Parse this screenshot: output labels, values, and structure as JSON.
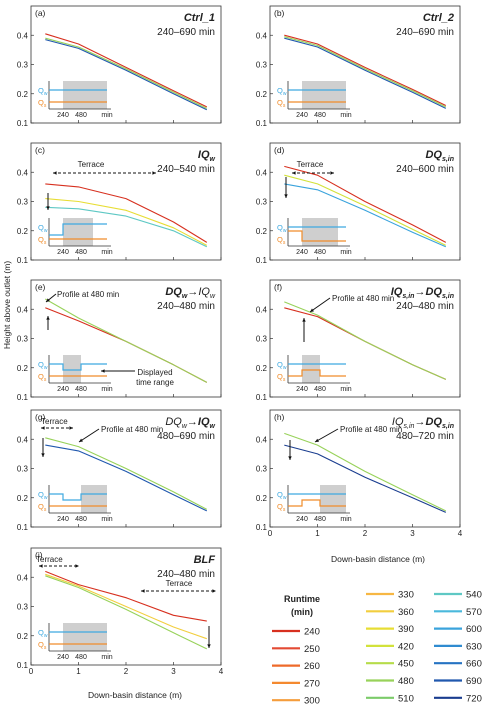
{
  "chart_data": {
    "type": "line",
    "ylabel": "Height above outlet (m)",
    "xlabel": "Down-basin distance (m)",
    "xlim": [
      0,
      4
    ],
    "ylim": [
      0.1,
      0.5
    ],
    "x_ticks": [
      "0",
      "1",
      "2",
      "3",
      "4"
    ],
    "y_ticks": [
      "0.1",
      "0.2",
      "0.3",
      "0.4"
    ],
    "grid": false,
    "legend": {
      "title": "Runtime (min)",
      "placement": "bottom-right",
      "entries": [
        {
          "label": "240",
          "color": "#d7301f"
        },
        {
          "label": "250",
          "color": "#e34a33"
        },
        {
          "label": "260",
          "color": "#ee6a2a"
        },
        {
          "label": "270",
          "color": "#f4892f"
        },
        {
          "label": "300",
          "color": "#f59d3c"
        },
        {
          "label": "330",
          "color": "#f7b743"
        },
        {
          "label": "360",
          "color": "#f2ce3e"
        },
        {
          "label": "390",
          "color": "#e7dd34"
        },
        {
          "label": "420",
          "color": "#d2e23a"
        },
        {
          "label": "450",
          "color": "#b6dc4a"
        },
        {
          "label": "480",
          "color": "#98d25a"
        },
        {
          "label": "510",
          "color": "#7ccb6a"
        },
        {
          "label": "540",
          "color": "#5ec8c4"
        },
        {
          "label": "570",
          "color": "#4ab9dc"
        },
        {
          "label": "600",
          "color": "#3aa3dc"
        },
        {
          "label": "630",
          "color": "#2f8bd0"
        },
        {
          "label": "660",
          "color": "#2673c2"
        },
        {
          "label": "690",
          "color": "#2058ae"
        },
        {
          "label": "720",
          "color": "#1a3d8f"
        }
      ]
    },
    "panels": [
      {
        "id": "(a)",
        "title": "Ctrl_1",
        "time": "240–690 min",
        "profiles": [
          {
            "runtime": "240",
            "x": [
              0.3,
              1.0,
              2.0,
              3.0,
              3.7
            ],
            "y": [
              0.405,
              0.37,
              0.29,
              0.21,
              0.155
            ]
          },
          {
            "runtime": "480",
            "x": [
              0.3,
              1.0,
              2.0,
              3.0,
              3.7
            ],
            "y": [
              0.39,
              0.36,
              0.285,
              0.205,
              0.15
            ]
          },
          {
            "runtime": "690",
            "x": [
              0.3,
              1.0,
              2.0,
              3.0,
              3.7
            ],
            "y": [
              0.385,
              0.355,
              0.28,
              0.2,
              0.145
            ]
          }
        ]
      },
      {
        "id": "(b)",
        "title": "Ctrl_2",
        "time": "240–690 min",
        "profiles": [
          {
            "runtime": "240",
            "x": [
              0.3,
              1.0,
              2.0,
              3.0,
              3.7
            ],
            "y": [
              0.4,
              0.37,
              0.29,
              0.215,
              0.16
            ]
          },
          {
            "runtime": "480",
            "x": [
              0.3,
              1.0,
              2.0,
              3.0,
              3.7
            ],
            "y": [
              0.395,
              0.365,
              0.285,
              0.21,
              0.155
            ]
          },
          {
            "runtime": "690",
            "x": [
              0.3,
              1.0,
              2.0,
              3.0,
              3.7
            ],
            "y": [
              0.39,
              0.36,
              0.28,
              0.205,
              0.15
            ]
          }
        ]
      },
      {
        "id": "(c)",
        "title": "IQw",
        "time": "240–540 min",
        "profiles": [
          {
            "runtime": "240",
            "x": [
              0.3,
              1.0,
              2.0,
              3.0,
              3.7
            ],
            "y": [
              0.36,
              0.35,
              0.31,
              0.23,
              0.16
            ]
          },
          {
            "runtime": "390",
            "x": [
              0.3,
              1.0,
              2.0,
              3.0,
              3.7
            ],
            "y": [
              0.31,
              0.3,
              0.27,
              0.21,
              0.15
            ]
          },
          {
            "runtime": "540",
            "x": [
              0.3,
              1.0,
              2.0,
              3.0,
              3.7
            ],
            "y": [
              0.28,
              0.275,
              0.25,
              0.2,
              0.145
            ]
          }
        ]
      },
      {
        "id": "(d)",
        "title": "DQs,in",
        "time": "240–600 min",
        "profiles": [
          {
            "runtime": "240",
            "x": [
              0.3,
              1.0,
              2.0,
              3.0,
              3.7
            ],
            "y": [
              0.42,
              0.39,
              0.3,
              0.22,
              0.16
            ]
          },
          {
            "runtime": "420",
            "x": [
              0.3,
              1.0,
              2.0,
              3.0,
              3.7
            ],
            "y": [
              0.39,
              0.36,
              0.285,
              0.205,
              0.15
            ]
          },
          {
            "runtime": "600",
            "x": [
              0.3,
              1.0,
              2.0,
              3.0,
              3.7
            ],
            "y": [
              0.36,
              0.34,
              0.27,
              0.195,
              0.145
            ]
          }
        ]
      },
      {
        "id": "(e)",
        "title": "DQw→IQw",
        "time": "240–480 min",
        "profiles": [
          {
            "runtime": "240",
            "x": [
              0.3,
              1.0,
              2.0,
              3.0,
              3.7
            ],
            "y": [
              0.405,
              0.36,
              0.29,
              0.21,
              0.15
            ]
          },
          {
            "runtime": "480",
            "x": [
              0.3,
              1.0,
              2.0,
              3.0,
              3.7
            ],
            "y": [
              0.435,
              0.37,
              0.29,
              0.21,
              0.15
            ]
          }
        ]
      },
      {
        "id": "(f)",
        "title": "IQs,in→DQs,in",
        "time": "240–480 min",
        "profiles": [
          {
            "runtime": "240",
            "x": [
              0.3,
              1.0,
              2.0,
              3.0,
              3.7
            ],
            "y": [
              0.405,
              0.375,
              0.29,
              0.21,
              0.16
            ]
          },
          {
            "runtime": "480",
            "x": [
              0.3,
              1.0,
              2.0,
              3.0,
              3.7
            ],
            "y": [
              0.425,
              0.38,
              0.29,
              0.21,
              0.16
            ]
          }
        ]
      },
      {
        "id": "(g)",
        "title": "DQw→IQw",
        "time": "480–690 min",
        "profiles": [
          {
            "runtime": "480",
            "x": [
              0.3,
              1.0,
              2.0,
              3.0,
              3.7
            ],
            "y": [
              0.405,
              0.375,
              0.3,
              0.22,
              0.16
            ]
          },
          {
            "runtime": "690",
            "x": [
              0.3,
              1.0,
              2.0,
              3.0,
              3.7
            ],
            "y": [
              0.38,
              0.36,
              0.29,
              0.21,
              0.155
            ]
          }
        ]
      },
      {
        "id": "(h)",
        "title": "IQs,in→DQs,in",
        "time": "480–720 min",
        "profiles": [
          {
            "runtime": "480",
            "x": [
              0.3,
              1.0,
              2.0,
              3.0,
              3.7
            ],
            "y": [
              0.42,
              0.38,
              0.29,
              0.21,
              0.155
            ]
          },
          {
            "runtime": "720",
            "x": [
              0.3,
              1.0,
              2.0,
              3.0,
              3.7
            ],
            "y": [
              0.38,
              0.35,
              0.27,
              0.2,
              0.15
            ]
          }
        ]
      },
      {
        "id": "(i)",
        "title": "BLF",
        "time": "240–480 min",
        "profiles": [
          {
            "runtime": "240",
            "x": [
              0.3,
              1.0,
              2.0,
              3.0,
              3.7
            ],
            "y": [
              0.42,
              0.375,
              0.33,
              0.27,
              0.25
            ]
          },
          {
            "runtime": "360",
            "x": [
              0.3,
              1.0,
              2.0,
              3.0,
              3.7
            ],
            "y": [
              0.41,
              0.37,
              0.3,
              0.23,
              0.19
            ]
          },
          {
            "runtime": "480",
            "x": [
              0.3,
              1.0,
              2.0,
              3.0,
              3.7
            ],
            "y": [
              0.405,
              0.365,
              0.29,
              0.21,
              0.155
            ]
          }
        ]
      }
    ]
  },
  "panel_titles": {
    "a": {
      "main": "Ctrl_1"
    },
    "b": {
      "main": "Ctrl_2"
    },
    "c": {
      "main": "IQ",
      "sub": "w"
    },
    "d": {
      "main": "DQ",
      "sub": "s,in"
    },
    "e": {
      "p1": "DQ",
      "s1": "w",
      "p2": "IQ",
      "s2": "w"
    },
    "f": {
      "p1": "IQ",
      "s1": "s,in",
      "p2": "DQ",
      "s2": "s,in"
    },
    "g": {
      "p1": "DQ",
      "s1": "w",
      "p2": "IQ",
      "s2": "w"
    },
    "h": {
      "p1": "IQ",
      "s1": "s,in",
      "p2": "DQ",
      "s2": "s,in"
    },
    "i": {
      "main": "BLF"
    }
  },
  "annotations": {
    "terrace": "Terrace",
    "profile_480": "Profile at 480 min",
    "displayed_range": "Displayed\ntime range"
  },
  "inset": {
    "qw": "Q",
    "qw_sub": "w",
    "qs": "Q",
    "qs_sub": "s",
    "ticks": [
      "240",
      "480"
    ],
    "unit": "min",
    "colors": {
      "qw": "#3fa9e0",
      "qs": "#f08c2a",
      "shade": "#cfcfcf"
    }
  }
}
